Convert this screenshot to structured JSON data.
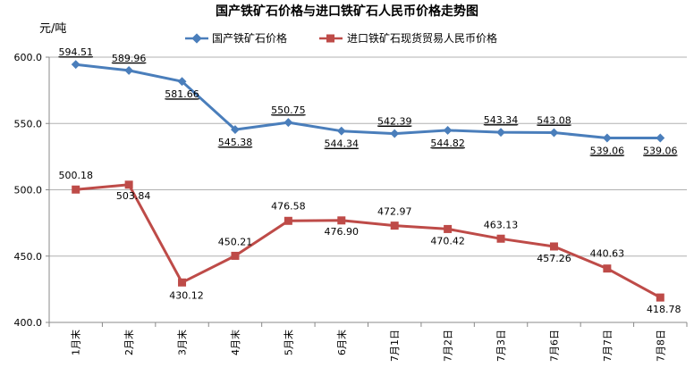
{
  "chart_data": {
    "type": "line",
    "title": "国产铁矿石价格与进口铁矿石人民币价格走势图",
    "ylabel": "元/吨",
    "xlabel": "",
    "ylim": [
      400,
      600
    ],
    "yticks": [
      "400.0",
      "450.0",
      "500.0",
      "550.0",
      "600.0"
    ],
    "categories": [
      "1月末",
      "2月末",
      "3月末",
      "4月末",
      "5月末",
      "6月末",
      "7月1日",
      "7月2日",
      "7月3日",
      "7月6日",
      "7月7日",
      "7月8日"
    ],
    "grid": true,
    "legend_position": "top",
    "series": [
      {
        "name": "国产铁矿石价格",
        "color": "#4a7ebb",
        "marker": "diamond",
        "values": [
          594.51,
          589.96,
          581.66,
          545.38,
          550.75,
          544.34,
          542.39,
          544.82,
          543.34,
          543.08,
          539.06,
          539.06
        ],
        "labels": [
          "594.51",
          "589.96",
          "581.66",
          "545.38",
          "550.75",
          "544.34",
          "542.39",
          "544.82",
          "543.34",
          "543.08",
          "539.06",
          "539.06"
        ]
      },
      {
        "name": "进口铁矿石现货贸易人民币价格",
        "color": "#be4b48",
        "marker": "square",
        "values": [
          500.18,
          503.84,
          430.12,
          450.21,
          476.58,
          476.9,
          472.97,
          470.42,
          463.13,
          457.26,
          440.63,
          418.78
        ],
        "labels": [
          "500.18",
          "503.84",
          "430.12",
          "450.21",
          "476.58",
          "476.90",
          "472.97",
          "470.42",
          "463.13",
          "457.26",
          "440.63",
          "418.78"
        ]
      }
    ]
  }
}
